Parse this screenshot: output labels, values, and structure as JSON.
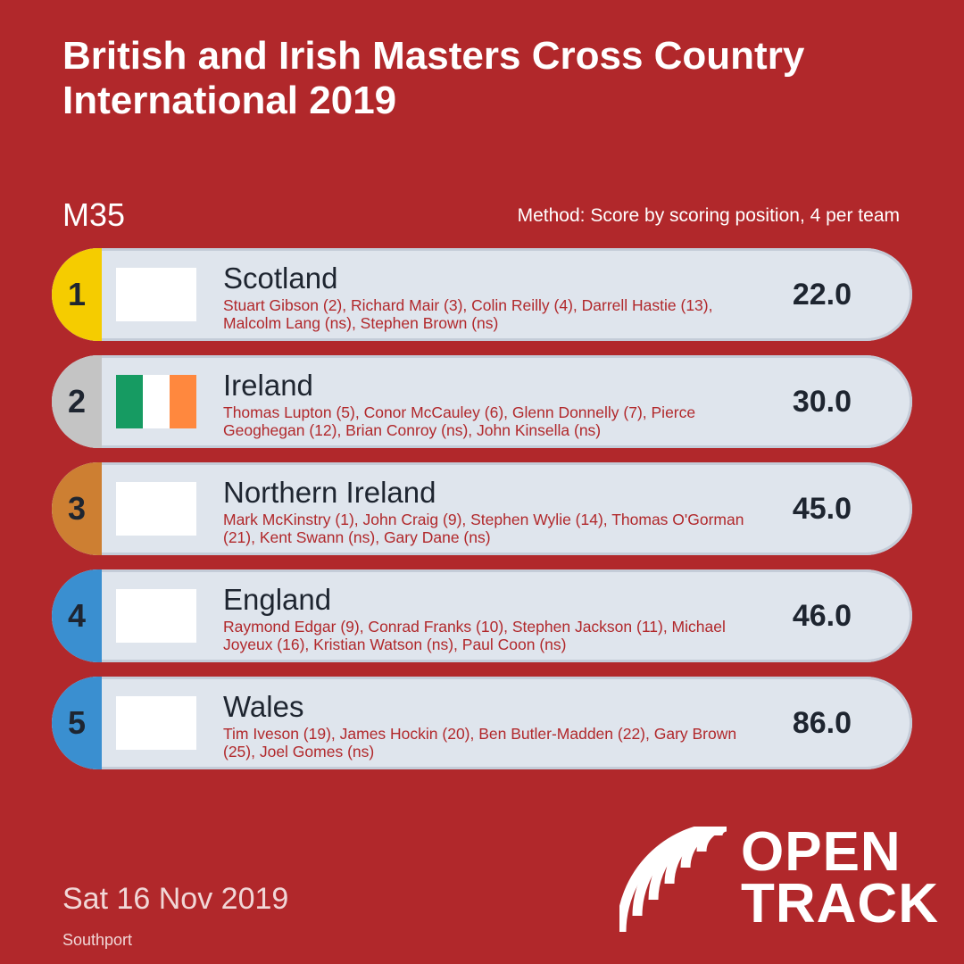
{
  "header": {
    "title": "British and Irish Masters Cross Country International 2019",
    "category": "M35",
    "method": "Method: Score by scoring position, 4 per team"
  },
  "results": [
    {
      "rank": "1",
      "rank_color": "#f5cc00",
      "team": "Scotland",
      "flag": [],
      "members": "Stuart Gibson (2), Richard Mair (3), Colin Reilly (4), Darrell Hastie (13), Malcolm Lang (ns), Stephen Brown (ns)",
      "score": "22.0"
    },
    {
      "rank": "2",
      "rank_color": "#c4c4c4",
      "team": "Ireland",
      "flag": [
        "#169b62",
        "#ffffff",
        "#ff883e"
      ],
      "members": "Thomas Lupton (5), Conor McCauley (6), Glenn Donnelly (7), Pierce Geoghegan (12), Brian Conroy (ns), John Kinsella (ns)",
      "score": "30.0"
    },
    {
      "rank": "3",
      "rank_color": "#cd7f32",
      "team": "Northern Ireland",
      "flag": [],
      "members": "Mark McKinstry (1), John Craig (9), Stephen Wylie (14), Thomas O'Gorman (21), Kent Swann (ns), Gary Dane (ns)",
      "score": "45.0"
    },
    {
      "rank": "4",
      "rank_color": "#3a8fd0",
      "team": "England",
      "flag": [],
      "members": "Raymond Edgar (9), Conrad Franks (10), Stephen Jackson (11), Michael Joyeux (16), Kristian Watson (ns), Paul Coon (ns)",
      "score": "46.0"
    },
    {
      "rank": "5",
      "rank_color": "#3a8fd0",
      "team": "Wales",
      "flag": [],
      "members": "Tim Iveson (19), James Hockin (20), Ben Butler-Madden (22), Gary Brown (25), Joel Gomes (ns)",
      "score": "86.0"
    }
  ],
  "footer": {
    "date": "Sat 16 Nov 2019",
    "venue": "Southport"
  },
  "logo": {
    "icon": "opentrack-stripes-icon",
    "line1": "OPEN",
    "line2": "TRACK"
  }
}
